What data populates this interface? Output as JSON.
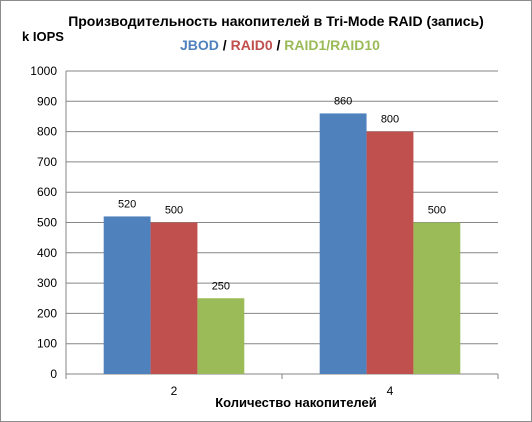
{
  "chart_data": {
    "type": "bar",
    "title": "Производительность накопителей в Tri-Mode RAID (запись)",
    "ylabel": "k IOPS",
    "xlabel": "Количество накопителей",
    "categories": [
      "2",
      "4"
    ],
    "ylim": [
      0,
      1000
    ],
    "yticks": [
      0,
      100,
      200,
      300,
      400,
      500,
      600,
      700,
      800,
      900,
      1000
    ],
    "grid": true,
    "series": [
      {
        "name": "JBOD",
        "color": "#4f81bd",
        "values": [
          520,
          860
        ]
      },
      {
        "name": "RAID0",
        "color": "#c0504d",
        "values": [
          500,
          800
        ]
      },
      {
        "name": "RAID1/RAID10",
        "color": "#9bbb59",
        "values": [
          250,
          500
        ]
      }
    ],
    "legend_separator": " / "
  }
}
